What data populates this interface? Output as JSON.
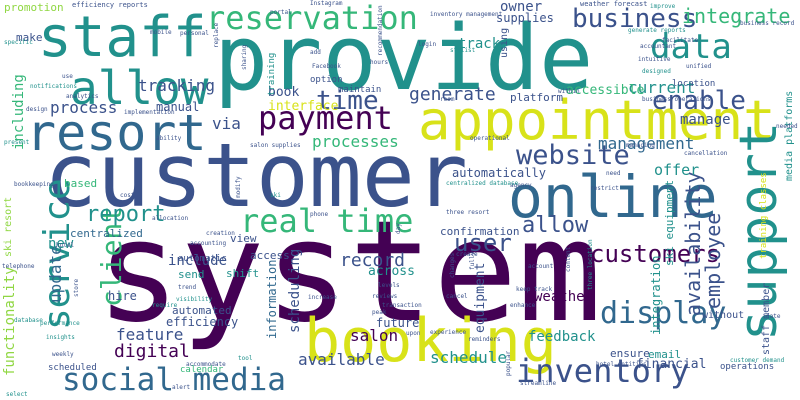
{
  "palette": {
    "purple": "#440154",
    "indigo": "#3b528b",
    "blue": "#31688e",
    "teal": "#21918c",
    "green": "#35b779",
    "lime": "#90d743",
    "yellow": "#d8e219"
  },
  "words": [
    {
      "text": "system",
      "color": "purple"
    },
    {
      "text": "customer",
      "color": "indigo"
    },
    {
      "text": "provide",
      "color": "teal"
    },
    {
      "text": "booking",
      "color": "yellow"
    },
    {
      "text": "appointment",
      "color": "yellow"
    },
    {
      "text": "online",
      "color": "blue"
    },
    {
      "text": "staff",
      "color": "teal"
    },
    {
      "text": "resort",
      "color": "blue"
    },
    {
      "text": "support",
      "color": "teal"
    },
    {
      "text": "allow",
      "color": "teal"
    },
    {
      "text": "social media",
      "color": "blue"
    },
    {
      "text": "inventory",
      "color": "indigo"
    },
    {
      "text": "service",
      "color": "teal"
    },
    {
      "text": "reservation",
      "color": "green"
    },
    {
      "text": "payment",
      "color": "purple"
    },
    {
      "text": "data",
      "color": "teal"
    },
    {
      "text": "real time",
      "color": "green"
    },
    {
      "text": "website",
      "color": "indigo"
    },
    {
      "text": "client",
      "color": "green"
    },
    {
      "text": "display",
      "color": "blue"
    },
    {
      "text": "time",
      "color": "indigo"
    },
    {
      "text": "report",
      "color": "teal"
    },
    {
      "text": "enable",
      "color": "indigo"
    },
    {
      "text": "user",
      "color": "indigo"
    },
    {
      "text": "customers",
      "color": "purple"
    },
    {
      "text": "allow",
      "color": "indigo"
    },
    {
      "text": "business",
      "color": "indigo"
    },
    {
      "text": "integrate",
      "color": "green"
    },
    {
      "text": "management",
      "color": "blue"
    },
    {
      "text": "employee",
      "color": "indigo"
    },
    {
      "text": "availability",
      "color": "indigo"
    },
    {
      "text": "current",
      "color": "teal"
    },
    {
      "text": "generate",
      "color": "indigo"
    },
    {
      "text": "tracking",
      "color": "indigo"
    },
    {
      "text": "process",
      "color": "indigo"
    },
    {
      "text": "processes",
      "color": "green"
    },
    {
      "text": "feature",
      "color": "indigo"
    },
    {
      "text": "digital",
      "color": "purple"
    },
    {
      "text": "schedule",
      "color": "teal"
    },
    {
      "text": "available",
      "color": "indigo"
    },
    {
      "text": "salon",
      "color": "purple"
    },
    {
      "text": "feedback",
      "color": "teal"
    },
    {
      "text": "weather",
      "color": "purple"
    },
    {
      "text": "record",
      "color": "indigo"
    },
    {
      "text": "include",
      "color": "indigo"
    },
    {
      "text": "update",
      "color": "blue"
    },
    {
      "text": "functionality",
      "color": "lime"
    },
    {
      "text": "including",
      "color": "green"
    },
    {
      "text": "automatically",
      "color": "indigo"
    },
    {
      "text": "offer",
      "color": "teal"
    },
    {
      "text": "new",
      "color": "teal"
    },
    {
      "text": "centralized",
      "color": "blue"
    },
    {
      "text": "track",
      "color": "teal"
    },
    {
      "text": "owner",
      "color": "indigo"
    },
    {
      "text": "supplies",
      "color": "indigo"
    },
    {
      "text": "via",
      "color": "indigo"
    },
    {
      "text": "book",
      "color": "indigo"
    },
    {
      "text": "interface",
      "color": "yellow"
    },
    {
      "text": "manual",
      "color": "indigo"
    },
    {
      "text": "scheduling",
      "color": "indigo"
    },
    {
      "text": "information",
      "color": "blue"
    },
    {
      "text": "platform",
      "color": "indigo"
    },
    {
      "text": "confirmation",
      "color": "indigo"
    },
    {
      "text": "across",
      "color": "teal"
    },
    {
      "text": "equipment",
      "color": "indigo"
    },
    {
      "text": "integration",
      "color": "teal"
    },
    {
      "text": "accessible",
      "color": "green"
    },
    {
      "text": "manage",
      "color": "indigo"
    },
    {
      "text": "future",
      "color": "indigo"
    },
    {
      "text": "email",
      "color": "teal"
    },
    {
      "text": "ensure",
      "color": "indigo"
    },
    {
      "text": "financial",
      "color": "indigo"
    },
    {
      "text": "efficiency",
      "color": "indigo"
    },
    {
      "text": "automated",
      "color": "indigo"
    },
    {
      "text": "hire",
      "color": "indigo"
    },
    {
      "text": "shift",
      "color": "teal"
    },
    {
      "text": "send",
      "color": "teal"
    },
    {
      "text": "access",
      "color": "indigo"
    },
    {
      "text": "view",
      "color": "indigo"
    },
    {
      "text": "automatic",
      "color": "indigo"
    },
    {
      "text": "based",
      "color": "green"
    },
    {
      "text": "make",
      "color": "indigo"
    },
    {
      "text": "promotion",
      "color": "lime"
    },
    {
      "text": "ski equipment",
      "color": "teal"
    },
    {
      "text": "staff member",
      "color": "indigo"
    },
    {
      "text": "media platforms",
      "color": "teal"
    },
    {
      "text": "training classes",
      "color": "yellow"
    },
    {
      "text": "ski resort",
      "color": "lime"
    },
    {
      "text": "without",
      "color": "indigo"
    },
    {
      "text": "scheduled",
      "color": "indigo"
    },
    {
      "text": "calendar",
      "color": "green"
    },
    {
      "text": "training",
      "color": "teal"
    },
    {
      "text": "using",
      "color": "indigo"
    },
    {
      "text": "maintain",
      "color": "indigo"
    },
    {
      "text": "option",
      "color": "indigo"
    },
    {
      "text": "location",
      "color": "indigo"
    },
    {
      "text": "operations",
      "color": "indigo"
    },
    {
      "text": "efficiency reports",
      "color": "indigo"
    },
    {
      "text": "weather forecast",
      "color": "indigo"
    },
    {
      "text": "generate reports",
      "color": "teal"
    },
    {
      "text": "business record",
      "color": "indigo"
    },
    {
      "text": "business operations",
      "color": "indigo"
    },
    {
      "text": "customer demand",
      "color": "teal"
    },
    {
      "text": "three resort",
      "color": "indigo"
    },
    {
      "text": "hotel entities",
      "color": "indigo"
    },
    {
      "text": "streamline",
      "color": "indigo"
    },
    {
      "text": "experience",
      "color": "indigo"
    },
    {
      "text": "reminders",
      "color": "indigo"
    },
    {
      "text": "cancel",
      "color": "indigo"
    },
    {
      "text": "reviews",
      "color": "indigo"
    },
    {
      "text": "increase",
      "color": "indigo"
    },
    {
      "text": "levels",
      "color": "indigo"
    },
    {
      "text": "transaction",
      "color": "indigo"
    },
    {
      "text": "peak",
      "color": "indigo"
    },
    {
      "text": "upon",
      "color": "indigo"
    },
    {
      "text": "analytics",
      "color": "indigo"
    },
    {
      "text": "notifications",
      "color": "teal"
    },
    {
      "text": "bookkeeping",
      "color": "indigo"
    },
    {
      "text": "visibility",
      "color": "teal"
    },
    {
      "text": "performance",
      "color": "teal"
    },
    {
      "text": "insights",
      "color": "teal"
    },
    {
      "text": "weekly",
      "color": "indigo"
    },
    {
      "text": "database",
      "color": "teal"
    },
    {
      "text": "telephone",
      "color": "indigo"
    },
    {
      "text": "hotel",
      "color": "indigo"
    },
    {
      "text": "cost",
      "color": "indigo"
    },
    {
      "text": "allocation",
      "color": "indigo"
    },
    {
      "text": "creation",
      "color": "indigo"
    },
    {
      "text": "accounting",
      "color": "indigo"
    },
    {
      "text": "trend",
      "color": "indigo"
    },
    {
      "text": "require",
      "color": "teal"
    },
    {
      "text": "accommodate",
      "color": "indigo"
    },
    {
      "text": "alert",
      "color": "indigo"
    },
    {
      "text": "tool",
      "color": "teal"
    },
    {
      "text": "implementation",
      "color": "indigo"
    },
    {
      "text": "ability",
      "color": "indigo"
    },
    {
      "text": "design",
      "color": "indigo"
    },
    {
      "text": "specific",
      "color": "teal"
    },
    {
      "text": "present",
      "color": "teal"
    },
    {
      "text": "salon supplies",
      "color": "indigo"
    },
    {
      "text": "operational",
      "color": "indigo"
    },
    {
      "text": "need",
      "color": "indigo"
    },
    {
      "text": "agency",
      "color": "indigo"
    },
    {
      "text": "centralized database",
      "color": "teal"
    },
    {
      "text": "cancellation",
      "color": "indigo"
    },
    {
      "text": "facilitate",
      "color": "indigo"
    },
    {
      "text": "unified",
      "color": "indigo"
    },
    {
      "text": "accountant",
      "color": "indigo"
    },
    {
      "text": "intuitive",
      "color": "indigo"
    },
    {
      "text": "designed",
      "color": "teal"
    },
    {
      "text": "improve",
      "color": "teal"
    },
    {
      "text": "Facebook",
      "color": "indigo"
    },
    {
      "text": "Instagram",
      "color": "indigo"
    },
    {
      "text": "stylist",
      "color": "teal"
    },
    {
      "text": "login",
      "color": "indigo"
    },
    {
      "text": "room",
      "color": "indigo"
    },
    {
      "text": "hours",
      "color": "indigo"
    },
    {
      "text": "add",
      "color": "indigo"
    },
    {
      "text": "portal",
      "color": "indigo"
    },
    {
      "text": "sharing",
      "color": "indigo"
    },
    {
      "text": "mobile",
      "color": "indigo"
    },
    {
      "text": "personal",
      "color": "indigo"
    },
    {
      "text": "replace",
      "color": "indigo"
    },
    {
      "text": "needed",
      "color": "indigo"
    },
    {
      "text": "date",
      "color": "indigo"
    },
    {
      "text": "account",
      "color": "indigo"
    },
    {
      "text": "content",
      "color": "indigo"
    },
    {
      "text": "restrict",
      "color": "indigo"
    },
    {
      "text": "managing",
      "color": "indigo"
    },
    {
      "text": "within",
      "color": "indigo"
    },
    {
      "text": "three location",
      "color": "teal"
    },
    {
      "text": "keep track",
      "color": "indigo"
    },
    {
      "text": "enhance",
      "color": "indigo"
    },
    {
      "text": "popular",
      "color": "indigo"
    },
    {
      "text": "phone",
      "color": "indigo"
    },
    {
      "text": "modify",
      "color": "indigo"
    },
    {
      "text": "select",
      "color": "teal"
    },
    {
      "text": "store",
      "color": "indigo"
    },
    {
      "text": "recommendation",
      "color": "indigo"
    },
    {
      "text": "inventory management",
      "color": "indigo"
    },
    {
      "text": "changes",
      "color": "indigo"
    },
    {
      "text": "fully",
      "color": "indigo"
    },
    {
      "text": "day",
      "color": "indigo"
    },
    {
      "text": "create",
      "color": "indigo"
    },
    {
      "text": "use",
      "color": "indigo"
    },
    {
      "text": "ski",
      "color": "teal"
    }
  ]
}
